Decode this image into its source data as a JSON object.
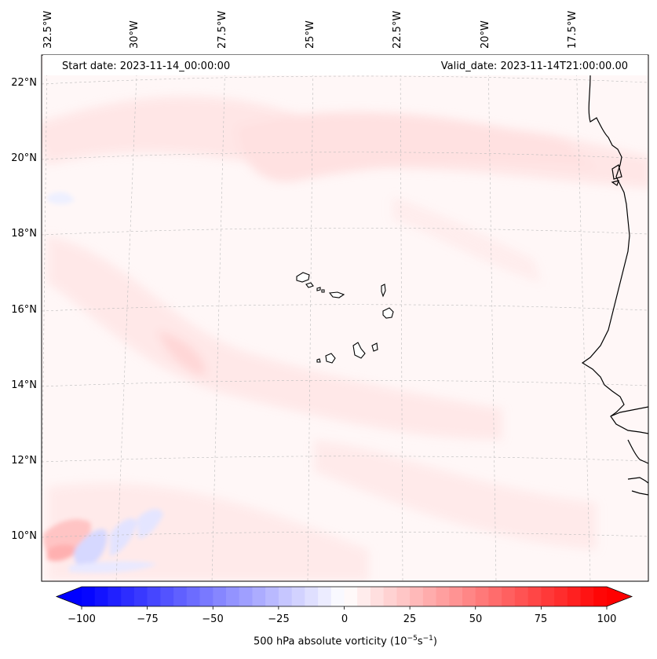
{
  "header": {
    "start_date": "Start date: 2023-11-14_00:00:00",
    "valid_date": "Valid_date: 2023-11-14T21:00:00.00"
  },
  "axes": {
    "longitude_labels": [
      "32.5°W",
      "30°W",
      "27.5°W",
      "25°W",
      "22.5°W",
      "20°W",
      "17.5°W"
    ],
    "latitude_labels": [
      "22°N",
      "20°N",
      "18°N",
      "16°N",
      "14°N",
      "12°N",
      "10°N"
    ]
  },
  "colorbar": {
    "ticks": [
      "−100",
      "−75",
      "−50",
      "−25",
      "0",
      "25",
      "50",
      "75",
      "100"
    ],
    "label": "500 hPa absolute vorticity (10",
    "label_exp1": "−5",
    "label_mid": "s",
    "label_exp2": "−1",
    "label_end": ")",
    "min_color": "#0000ff",
    "mid_color": "#ffffff",
    "max_color": "#ff0000"
  }
}
